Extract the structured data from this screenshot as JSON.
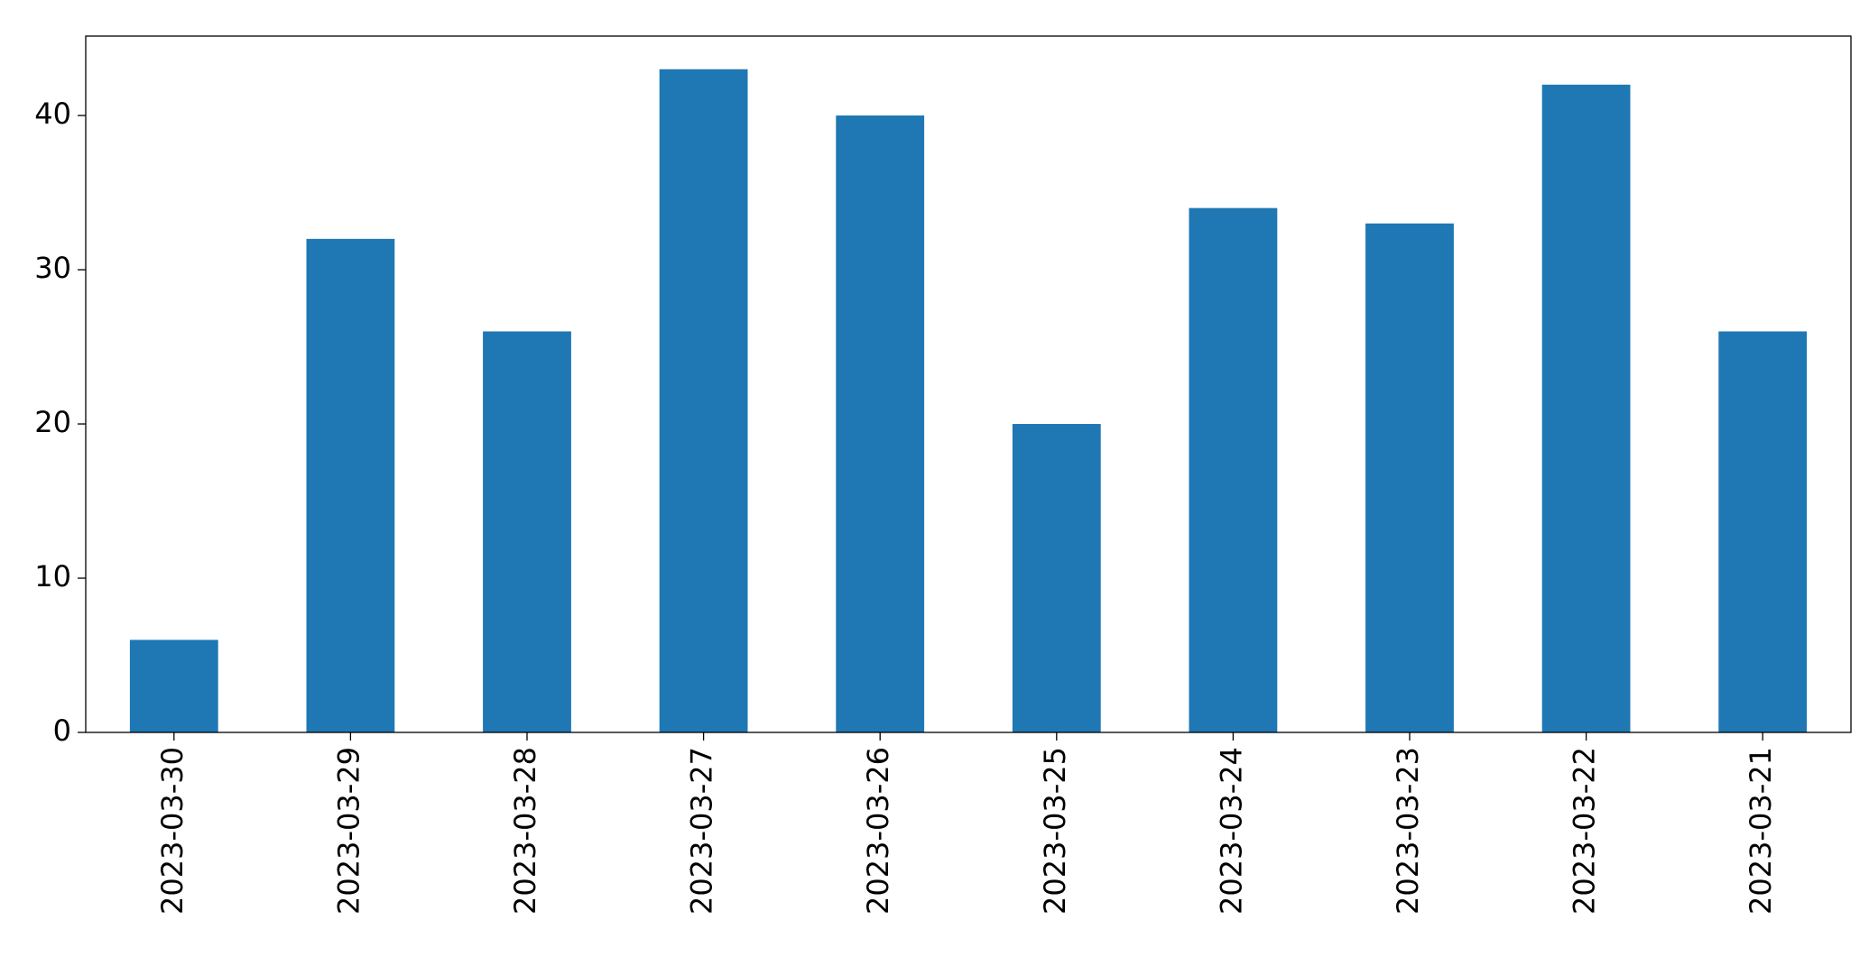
{
  "chart_data": {
    "type": "bar",
    "categories": [
      "2023-03-30",
      "2023-03-29",
      "2023-03-28",
      "2023-03-27",
      "2023-03-26",
      "2023-03-25",
      "2023-03-24",
      "2023-03-23",
      "2023-03-22",
      "2023-03-21"
    ],
    "values": [
      6,
      32,
      26,
      43,
      40,
      20,
      34,
      33,
      42,
      26
    ],
    "color": "#1f77b4",
    "ylim": [
      0,
      45.15
    ],
    "yticks": [
      0,
      10,
      20,
      30,
      40
    ],
    "grid": false
  }
}
